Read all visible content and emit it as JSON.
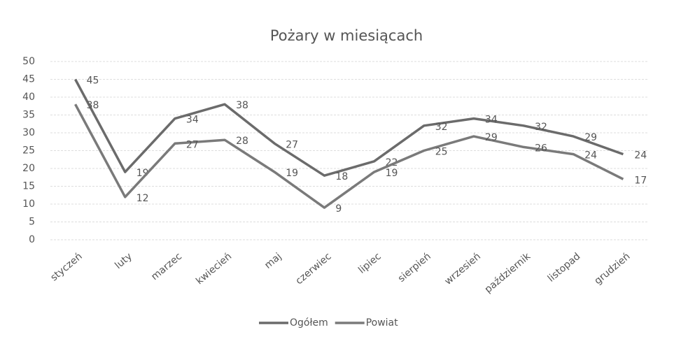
{
  "chart_data": {
    "type": "line",
    "title": "Pożary w miesiącach",
    "categories": [
      "styczeń",
      "luty",
      "marzec",
      "kwiecień",
      "maj",
      "czerwiec",
      "lipiec",
      "sierpień",
      "wrzesień",
      "październik",
      "listopad",
      "grudzień"
    ],
    "series": [
      {
        "name": "Ogółem",
        "color": "#6b6b6b",
        "values": [
          45,
          19,
          34,
          38,
          27,
          18,
          22,
          32,
          34,
          32,
          29,
          24
        ]
      },
      {
        "name": "Powiat",
        "color": "#7a7a7a",
        "values": [
          38,
          12,
          27,
          28,
          19,
          9,
          19,
          25,
          29,
          26,
          24,
          17
        ]
      }
    ],
    "ylim": [
      0,
      50
    ],
    "yticks": [
      0,
      5,
      10,
      15,
      20,
      25,
      30,
      35,
      40,
      45,
      50
    ],
    "grid": true,
    "legend": "bottom"
  }
}
